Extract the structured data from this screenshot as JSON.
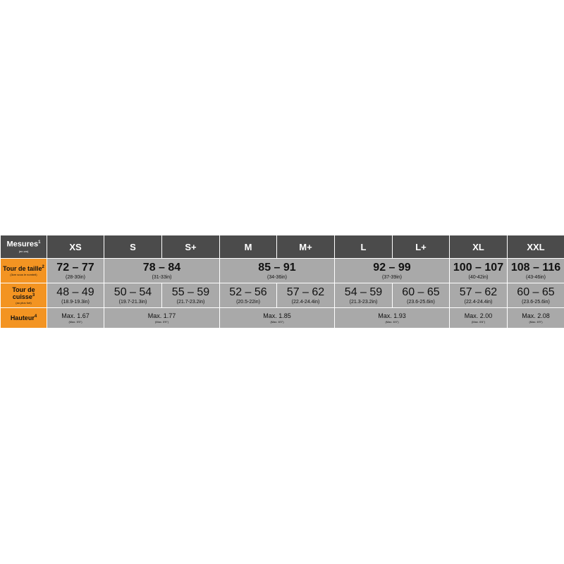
{
  "header": {
    "label": "Mesures",
    "sup": "1",
    "note": "(en cm)",
    "sizes": [
      "XS",
      "S",
      "S+",
      "M",
      "M+",
      "L",
      "L+",
      "XL",
      "XXL"
    ]
  },
  "rows": [
    {
      "label": "Tour de taille",
      "sup": "2",
      "note": "(3cm sous le nombril)",
      "cells": [
        {
          "main": "72 – 77",
          "sub": "(28-30in)"
        },
        {
          "main": "78 – 84",
          "sub": "(31-33in)"
        },
        {
          "main": "85 – 91",
          "sub": "(34-36in)"
        },
        {
          "main": "92 – 99",
          "sub": "(37-39in)"
        },
        {
          "main": "100 – 107",
          "sub": "(40-42in)"
        },
        {
          "main": "108 – 116",
          "sub": "(43-46in)"
        }
      ]
    },
    {
      "label": "Tour de cuisse",
      "sup": "3",
      "note": "(au plus fort)",
      "cells": [
        {
          "main": "48 – 49",
          "sub": "(18.9-19.3in)"
        },
        {
          "main": "50 – 54",
          "sub": "(19.7-21.3in)"
        },
        {
          "main": "55 – 59",
          "sub": "(21.7-23.2in)"
        },
        {
          "main": "52 – 56",
          "sub": "(20.5-22in)"
        },
        {
          "main": "57 – 62",
          "sub": "(22.4-24.4in)"
        },
        {
          "main": "54 – 59",
          "sub": "(21.3-23.2in)"
        },
        {
          "main": "60 – 65",
          "sub": "(23.6-25.6in)"
        },
        {
          "main": "57 – 62",
          "sub": "(22.4-24.4in)"
        },
        {
          "main": "60 – 65",
          "sub": "(23.6-25.6in)"
        }
      ]
    },
    {
      "label": "Hauteur",
      "sup": "4",
      "cells": [
        {
          "main": "Max. 1.67",
          "sub": "(Max. 5'5\")"
        },
        {
          "main": "Max. 1.77",
          "sub": "(Max. 5'9\")"
        },
        {
          "main": "Max. 1.85",
          "sub": "(Max. 6'0\")"
        },
        {
          "main": "Max. 1.93",
          "sub": "(Max. 6'4\")"
        },
        {
          "main": "Max. 2.00",
          "sub": "(Max. 6'6\")"
        },
        {
          "main": "Max. 2.08",
          "sub": "(Max. 6'9\")"
        }
      ]
    }
  ]
}
